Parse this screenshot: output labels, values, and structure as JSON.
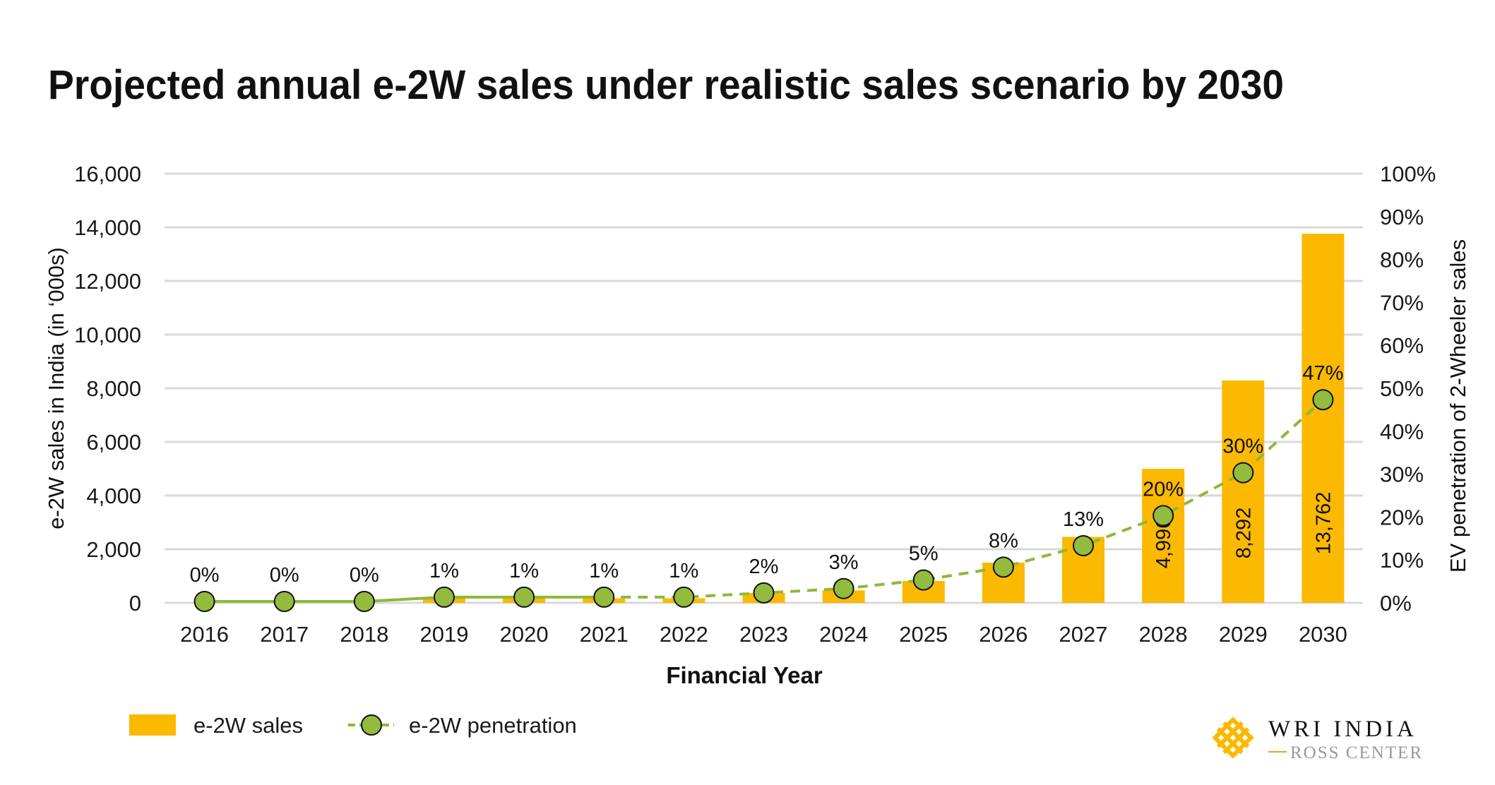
{
  "chart_data": {
    "type": "bar+line",
    "title": "Projected annual e-2W sales under realistic sales scenario by 2030",
    "xlabel": "Financial Year",
    "ylabel": "e-2W sales in India (in ‘000s)",
    "ylabel_right": "EV penetration of 2-Wheeler sales",
    "categories": [
      "2016",
      "2017",
      "2018",
      "2019",
      "2020",
      "2021",
      "2022",
      "2023",
      "2024",
      "2025",
      "2026",
      "2027",
      "2028",
      "2029",
      "2030"
    ],
    "ylim": [
      0,
      16000
    ],
    "yticks": [
      "0",
      "2,000",
      "4,000",
      "6,000",
      "8,000",
      "10,000",
      "12,000",
      "14,000",
      "16,000"
    ],
    "ylim_right": [
      0,
      100
    ],
    "yticks_right": [
      "0%",
      "10%",
      "20%",
      "30%",
      "40%",
      "50%",
      "60%",
      "70%",
      "80%",
      "90%",
      "100%"
    ],
    "grid": true,
    "legend_position": "bottom-left",
    "series": [
      {
        "name": "e-2W sales",
        "type": "bar",
        "axis": "left",
        "color": "#FBB900",
        "values": [
          20,
          20,
          20,
          175,
          170,
          170,
          170,
          370,
          465,
          816,
          1500,
          2460,
          4996,
          8292,
          13762
        ],
        "data_labels": {
          "12": "4,996",
          "13": "8,292",
          "14": "13,762"
        }
      },
      {
        "name": "e-2W penetration",
        "type": "line",
        "axis": "right",
        "color": "#8DB83A",
        "marker_color": "#93BB3E",
        "values": [
          0,
          0,
          0,
          1,
          1,
          1,
          1,
          2,
          3,
          5,
          8,
          13,
          20,
          30,
          47
        ],
        "data_labels": [
          "0%",
          "0%",
          "0%",
          "1%",
          "1%",
          "1%",
          "1%",
          "2%",
          "3%",
          "5%",
          "8%",
          "13%",
          "20%",
          "30%",
          "47%"
        ],
        "solid_until_index": 5
      }
    ]
  },
  "logo": {
    "line1": "WRI INDIA",
    "line2": "ROSS CENTER",
    "color": "#FBB900"
  }
}
